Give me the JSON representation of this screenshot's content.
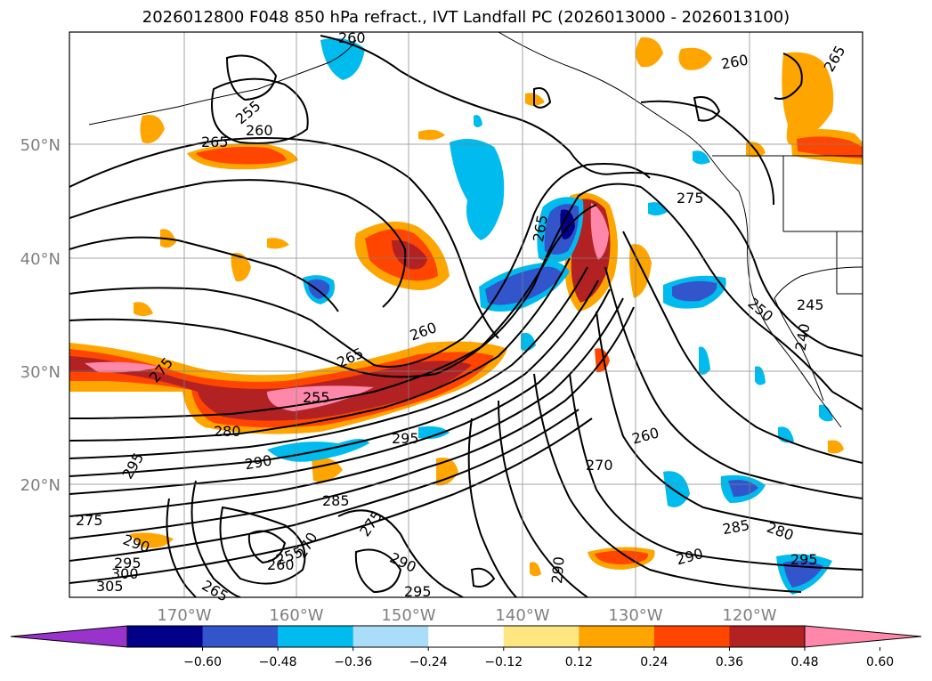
{
  "title": "2026012800 F048 850 hPa refract., IVT Landfall PC (2026013000 - 2026013100)",
  "lat_labels": [
    "50°N",
    "40°N",
    "30°N",
    "20°N"
  ],
  "lon_labels": [
    "170°W",
    "160°W",
    "150°W",
    "140°W",
    "130°W",
    "120°W"
  ],
  "colorbar": {
    "ticks": [
      "−0.60",
      "−0.48",
      "−0.36",
      "−0.24",
      "−0.12",
      "0.12",
      "0.24",
      "0.36",
      "0.48",
      "0.60"
    ],
    "under_color": "#9933cc",
    "colors": [
      "#9933cc",
      "#000088",
      "#3355cc",
      "#00bbee",
      "#aaddf8",
      "#ffffff",
      "#ffe680",
      "#ffa500",
      "#ff4500",
      "#b22222",
      "#ff88aa"
    ],
    "over_color": "#ff88aa"
  },
  "contour_labels": [
    "260",
    "255",
    "260",
    "265",
    "260",
    "265",
    "275",
    "265",
    "250",
    "245",
    "240",
    "260",
    "265",
    "255",
    "275",
    "280",
    "290",
    "295",
    "295",
    "275",
    "290",
    "295",
    "300",
    "305",
    "255",
    "260",
    "270",
    "275",
    "285",
    "265",
    "290",
    "295",
    "290",
    "270",
    "260",
    "285",
    "280",
    "295",
    "290"
  ]
}
